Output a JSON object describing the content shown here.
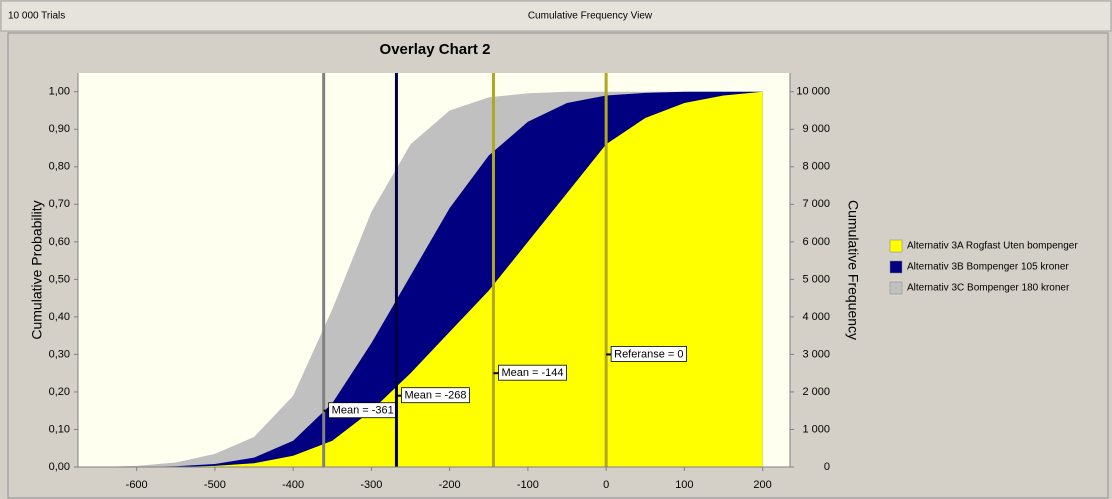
{
  "header": {
    "left": "10 000 Trials",
    "center": "Cumulative Frequency View"
  },
  "chart_data": {
    "type": "area",
    "title": "Overlay Chart 2",
    "ylabel": "Cumulative Probability",
    "y2label": "Cumulative Frequency",
    "x": [
      -650,
      -600,
      -550,
      -500,
      -450,
      -400,
      -350,
      -300,
      -250,
      -200,
      -150,
      -100,
      -50,
      0,
      50,
      100,
      150,
      200
    ],
    "xlim": [
      -675,
      235
    ],
    "xticks": [
      -600,
      -500,
      -400,
      -300,
      -200,
      -100,
      0,
      100,
      200
    ],
    "ylim": [
      0,
      1.05
    ],
    "yticks": [
      {
        "value": 0,
        "label": "0,00"
      },
      {
        "value": 0.1,
        "label": "0,10"
      },
      {
        "value": 0.2,
        "label": "0,20"
      },
      {
        "value": 0.3,
        "label": "0,30"
      },
      {
        "value": 0.4,
        "label": "0,40"
      },
      {
        "value": 0.5,
        "label": "0,50"
      },
      {
        "value": 0.6,
        "label": "0,60"
      },
      {
        "value": 0.7,
        "label": "0,70"
      },
      {
        "value": 0.8,
        "label": "0,80"
      },
      {
        "value": 0.9,
        "label": "0,90"
      },
      {
        "value": 1,
        "label": "1,00"
      }
    ],
    "y2lim": [
      0,
      10500
    ],
    "y2ticks": [
      0,
      {
        "value": 1000,
        "label": "1 000"
      },
      {
        "value": 2000,
        "label": "2 000"
      },
      {
        "value": 3000,
        "label": "3 000"
      },
      {
        "value": 4000,
        "label": "4 000"
      },
      {
        "value": 5000,
        "label": "5 000"
      },
      {
        "value": 6000,
        "label": "6 000"
      },
      {
        "value": 7000,
        "label": "7 000"
      },
      {
        "value": 8000,
        "label": "8 000"
      },
      {
        "value": 9000,
        "label": "9 000"
      },
      {
        "value": 10000,
        "label": "10 000"
      }
    ],
    "series": [
      {
        "name": "Alternativ 3C Bompenger 180 kroner",
        "color": "#c0c0c0",
        "values": [
          0,
          0.003,
          0.012,
          0.035,
          0.08,
          0.19,
          0.42,
          0.68,
          0.86,
          0.95,
          0.985,
          0.996,
          1,
          1,
          1,
          1,
          1,
          1
        ]
      },
      {
        "name": "Alternativ 3B Bompenger 105 kroner",
        "color": "#000080",
        "values": [
          0,
          0,
          0.002,
          0.008,
          0.025,
          0.07,
          0.17,
          0.33,
          0.51,
          0.69,
          0.83,
          0.92,
          0.97,
          0.99,
          0.997,
          1,
          1,
          1
        ]
      },
      {
        "name": "Alternativ 3A Rogfast Uten bompenger",
        "color": "#ffff00",
        "values": [
          0,
          0,
          0,
          0.003,
          0.01,
          0.03,
          0.07,
          0.15,
          0.25,
          0.36,
          0.47,
          0.6,
          0.73,
          0.86,
          0.93,
          0.97,
          0.99,
          1
        ]
      }
    ],
    "legend_order": [
      2,
      1,
      0
    ],
    "annotations": [
      {
        "text": "Mean = -361",
        "x": -361,
        "color": "#808080"
      },
      {
        "text": "Mean = -268",
        "x": -268,
        "color": "#000040"
      },
      {
        "text": "Mean = -144",
        "x": -144,
        "color": "#b0a820"
      },
      {
        "text": "Referanse = 0",
        "x": 0,
        "color": "#b0a820"
      }
    ]
  }
}
